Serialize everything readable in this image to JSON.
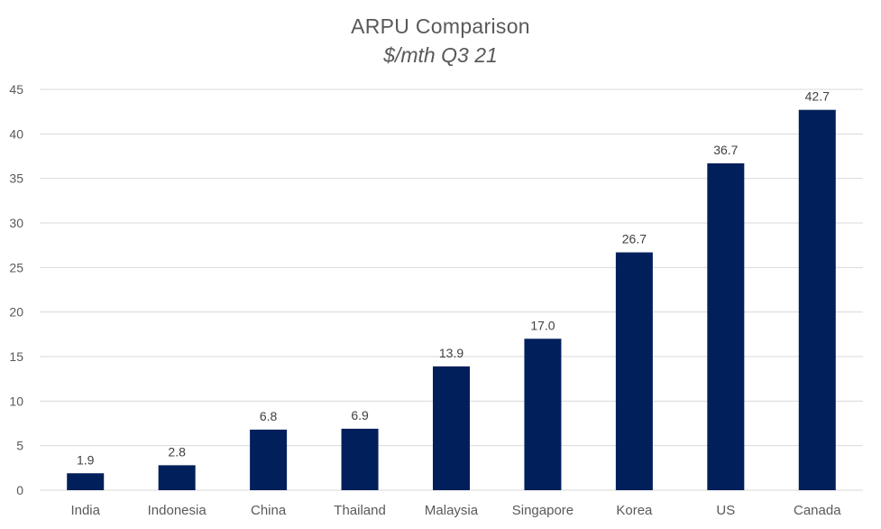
{
  "chart_data": {
    "type": "bar",
    "title": "ARPU Comparison",
    "subtitle": "$/mth Q3 21",
    "xlabel": "",
    "ylabel": "",
    "categories": [
      "India",
      "Indonesia",
      "China",
      "Thailand",
      "Malaysia",
      "Singapore",
      "Korea",
      "US",
      "Canada"
    ],
    "values": [
      1.9,
      2.8,
      6.8,
      6.9,
      13.9,
      17.0,
      26.7,
      36.7,
      42.7
    ],
    "value_labels": [
      "1.9",
      "2.8",
      "6.8",
      "6.9",
      "13.9",
      "17.0",
      "26.7",
      "36.7",
      "42.7"
    ],
    "ylim": [
      0,
      45
    ],
    "yticks": [
      0,
      5,
      10,
      15,
      20,
      25,
      30,
      35,
      40,
      45
    ],
    "grid": true,
    "legend": "none",
    "bar_color": "#001F5B",
    "grid_color": "#D9D9D9"
  }
}
